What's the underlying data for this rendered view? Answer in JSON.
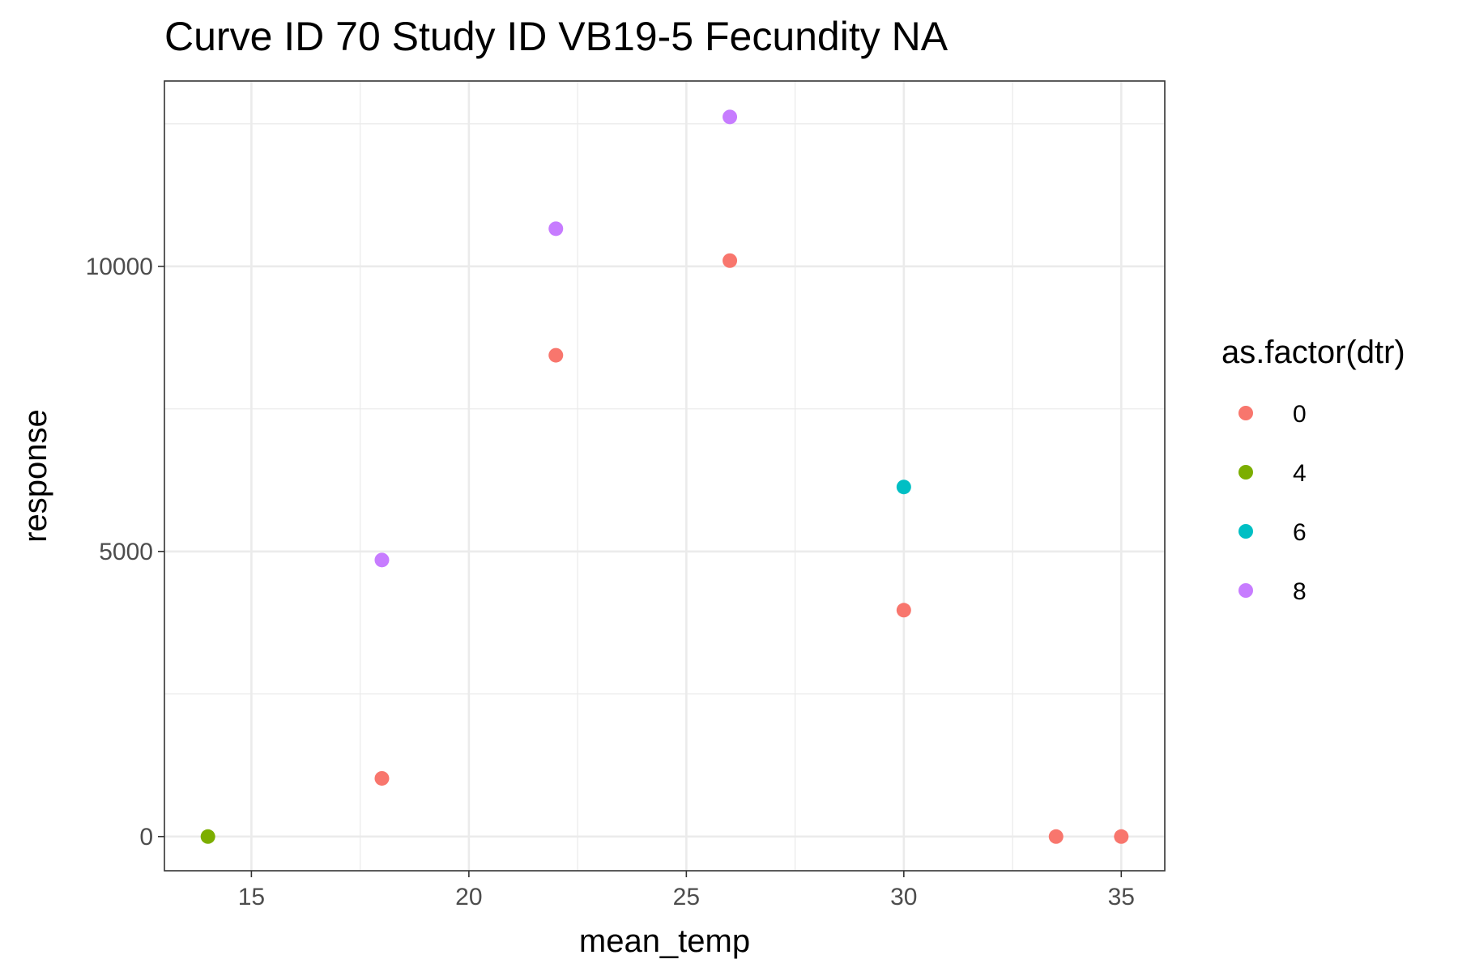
{
  "chart_data": {
    "type": "scatter",
    "title": "Curve ID 70 Study ID VB19-5 Fecundity NA",
    "xlabel": "mean_temp",
    "ylabel": "response",
    "xlim": [
      13,
      36
    ],
    "ylim": [
      -600,
      13250
    ],
    "x_ticks": [
      15,
      20,
      25,
      30,
      35
    ],
    "x_tick_labels": [
      "15",
      "20",
      "25",
      "30",
      "35"
    ],
    "y_ticks": [
      0,
      5000,
      10000
    ],
    "y_tick_labels": [
      "0",
      "5000",
      "10000"
    ],
    "grid": true,
    "legend": {
      "title": "as.factor(dtr)",
      "placement": "right",
      "entries": [
        {
          "label": "0",
          "color": "#F8766D"
        },
        {
          "label": "4",
          "color": "#7CAE00"
        },
        {
          "label": "6",
          "color": "#00BFC4"
        },
        {
          "label": "8",
          "color": "#C77CFF"
        }
      ]
    },
    "series": [
      {
        "name": "0",
        "color": "#F8766D",
        "points": [
          [
            18,
            1020
          ],
          [
            22,
            8440
          ],
          [
            26,
            10100
          ],
          [
            30,
            3970
          ],
          [
            33.5,
            0
          ],
          [
            35,
            0
          ]
        ]
      },
      {
        "name": "4",
        "color": "#7CAE00",
        "points": [
          [
            14,
            0
          ]
        ]
      },
      {
        "name": "6",
        "color": "#00BFC4",
        "points": [
          [
            30,
            6130
          ]
        ]
      },
      {
        "name": "8",
        "color": "#C77CFF",
        "points": [
          [
            18,
            4850
          ],
          [
            22,
            10660
          ],
          [
            26,
            12620
          ]
        ]
      }
    ]
  }
}
